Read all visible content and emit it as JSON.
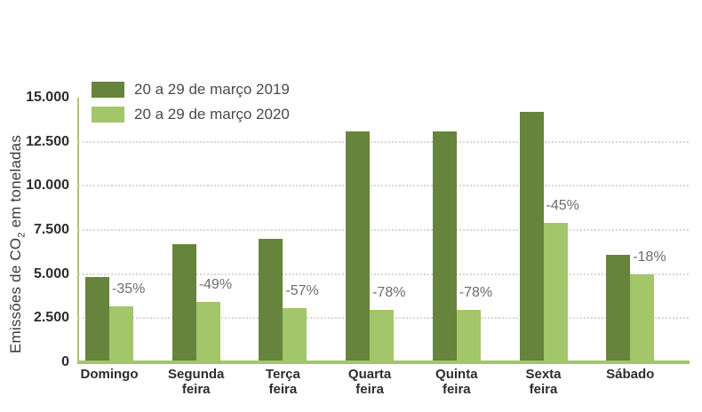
{
  "y_axis": {
    "title_pre": "Emissões de CO",
    "title_sub": "2",
    "title_post": " em toneladas"
  },
  "legend": {
    "items": [
      {
        "label": "20 a 29 de março 2019",
        "color": "#67843c"
      },
      {
        "label": "20 a 29 de março 2020",
        "color": "#a2c669"
      }
    ]
  },
  "colors": {
    "bar_2019": "#67843c",
    "bar_2020": "#a2c669",
    "axis_line": "#abc476",
    "baseline": "#a2c669",
    "gridline": "#ded6cc",
    "tick_text": "#2d2d2d",
    "percent_text": "#6c6c6c",
    "legend_text": "#4a4a4a"
  },
  "chart_data": {
    "type": "bar",
    "title": "",
    "ylabel": "Emissões de CO2 em toneladas",
    "unit": "toneladas de CO2",
    "ylim": [
      0,
      15000
    ],
    "grid": "horizontal dotted",
    "legend_position": "top-left",
    "yticks": [
      {
        "value": 15000,
        "label": "15.000"
      },
      {
        "value": 12500,
        "label": "12.500"
      },
      {
        "value": 10000,
        "label": "10.000"
      },
      {
        "value": 7500,
        "label": "7.500"
      },
      {
        "value": 5000,
        "label": "5.000"
      },
      {
        "value": 2500,
        "label": "2.500"
      },
      {
        "value": 0,
        "label": "0"
      }
    ],
    "series": [
      {
        "key": "v2019",
        "name": "20 a 29 de março 2019",
        "color": "#67843c",
        "values": [
          4850,
          6700,
          7000,
          13100,
          13100,
          14200,
          6100
        ]
      },
      {
        "key": "v2020",
        "name": "20 a 29 de março 2020",
        "color": "#a2c669",
        "values": [
          3150,
          3450,
          3050,
          2950,
          2950,
          7900,
          5000
        ]
      }
    ],
    "categories": [
      {
        "slug": "domingo",
        "lines": [
          "Domingo"
        ],
        "label": "Domingo",
        "v2019": 4850,
        "v2020": 3150,
        "pct_change": "-35%"
      },
      {
        "slug": "segunda-feira",
        "lines": [
          "Segunda",
          "feira"
        ],
        "label": "Segunda feira",
        "v2019": 6700,
        "v2020": 3450,
        "pct_change": "-49%"
      },
      {
        "slug": "terca-feira",
        "lines": [
          "Terça",
          "feira"
        ],
        "label": "Terça feira",
        "v2019": 7000,
        "v2020": 3050,
        "pct_change": "-57%"
      },
      {
        "slug": "quarta-feira",
        "lines": [
          "Quarta",
          "feira"
        ],
        "label": "Quarta feira",
        "v2019": 13100,
        "v2020": 2950,
        "pct_change": "-78%"
      },
      {
        "slug": "quinta-feira",
        "lines": [
          "Quinta",
          "feira"
        ],
        "label": "Quinta feira",
        "v2019": 13100,
        "v2020": 2950,
        "pct_change": "-78%"
      },
      {
        "slug": "sexta-feira",
        "lines": [
          "Sexta",
          "feira"
        ],
        "label": "Sexta feira",
        "v2019": 14200,
        "v2020": 7900,
        "pct_change": "-45%"
      },
      {
        "slug": "sabado",
        "lines": [
          "Sábado"
        ],
        "label": "Sábado",
        "v2019": 6100,
        "v2020": 5000,
        "pct_change": "-18%"
      }
    ]
  }
}
